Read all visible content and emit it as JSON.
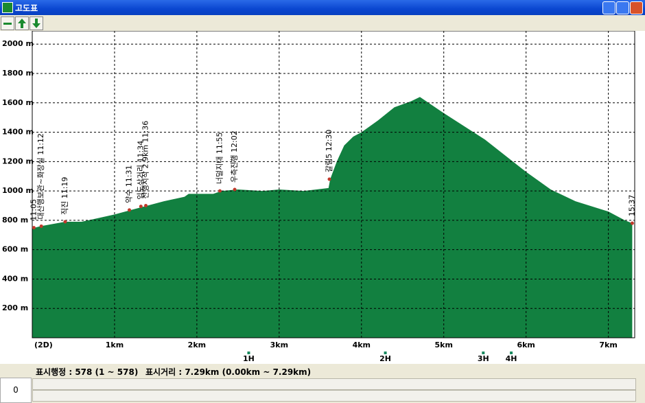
{
  "window": {
    "title": "고도표"
  },
  "chart_data": {
    "type": "area",
    "color": "#128040",
    "x": [
      0,
      0.1,
      0.4,
      0.6,
      1.0,
      1.2,
      1.4,
      1.6,
      1.85,
      1.9,
      2.2,
      2.3,
      2.5,
      2.8,
      3.0,
      3.3,
      3.6,
      3.62,
      3.7,
      3.79,
      3.9,
      4.0,
      4.2,
      4.4,
      4.6,
      4.71,
      5.0,
      5.5,
      6.0,
      6.3,
      6.6,
      7.0,
      7.2,
      7.29
    ],
    "values": [
      745,
      760,
      790,
      790,
      840,
      870,
      900,
      930,
      960,
      980,
      980,
      1000,
      1010,
      1000,
      1010,
      1000,
      1020,
      1080,
      1200,
      1310,
      1370,
      1400,
      1480,
      1570,
      1610,
      1640,
      1530,
      1350,
      1130,
      1010,
      930,
      860,
      800,
      780
    ],
    "xlim": [
      0,
      7.32
    ],
    "ylim": [
      0,
      2090
    ],
    "xticks": [
      {
        "value": 1,
        "label": "1km"
      },
      {
        "value": 2,
        "label": "2km"
      },
      {
        "value": 3,
        "label": "3km"
      },
      {
        "value": 4,
        "label": "4km"
      },
      {
        "value": 5,
        "label": "5km"
      },
      {
        "value": 6,
        "label": "6km"
      },
      {
        "value": 7,
        "label": "7km"
      }
    ],
    "yticks": [
      {
        "value": 200,
        "label": "200 m"
      },
      {
        "value": 400,
        "label": "400 m"
      },
      {
        "value": 600,
        "label": "600 m"
      },
      {
        "value": 800,
        "label": "800 m"
      },
      {
        "value": 1000,
        "label": "1000 m"
      },
      {
        "value": 1200,
        "label": "1200 m"
      },
      {
        "value": 1400,
        "label": "1400 m"
      },
      {
        "value": 1600,
        "label": "1600 m"
      },
      {
        "value": 1800,
        "label": "1800 m"
      },
      {
        "value": 2000,
        "label": "2000 m"
      }
    ],
    "grid": true,
    "x_axis_label": "(2D)",
    "annotations": [
      {
        "text": "11:05",
        "x": 0.02,
        "y": 750
      },
      {
        "text": "대산행보관~화장실 11:12",
        "x": 0.11,
        "y": 760
      },
      {
        "text": "직진 11:19",
        "x": 0.4,
        "y": 790
      },
      {
        "text": "약수 11:31",
        "x": 1.18,
        "y": 870
      },
      {
        "text": "임도삼거리 11:34",
        "x": 1.32,
        "y": 895
      },
      {
        "text": "산행시작 2.9km 11:36",
        "x": 1.38,
        "y": 900
      },
      {
        "text": "너덜지대 11:55",
        "x": 2.28,
        "y": 1000
      },
      {
        "text": "우측진행 12:02",
        "x": 2.46,
        "y": 1010
      },
      {
        "text": "갈림5 12:30",
        "x": 3.61,
        "y": 1080
      },
      {
        "text": "15:37",
        "x": 7.29,
        "y": 780
      }
    ],
    "hour_markers": [
      {
        "label": "1H",
        "x": 2.63
      },
      {
        "label": "2H",
        "x": 4.29
      },
      {
        "label": "3H",
        "x": 5.48
      },
      {
        "label": "4H",
        "x": 5.82
      }
    ]
  },
  "status": {
    "points": "표시행정 : 578 (1 ~ 578)",
    "distance": "표시거리 : 7.29km (0.00km ~ 7.29km)"
  },
  "scrollbar": {
    "value": "0"
  }
}
